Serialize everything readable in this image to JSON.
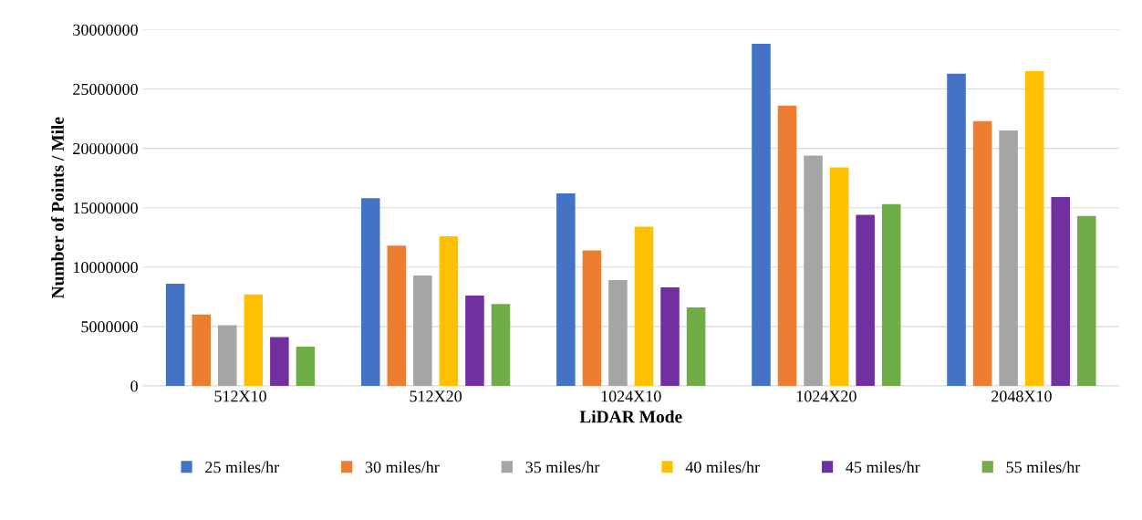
{
  "chart_data": {
    "type": "bar",
    "xlabel": "LiDAR Mode",
    "ylabel": "Number of Points / Mile",
    "categories": [
      "512X10",
      "512X20",
      "1024X10",
      "1024X20",
      "2048X10"
    ],
    "series": [
      {
        "name": "25 miles/hr",
        "color": "#4472c4",
        "values": [
          8600000,
          15800000,
          16200000,
          28800000,
          26300000
        ]
      },
      {
        "name": "30 miles/hr",
        "color": "#ed7d31",
        "values": [
          6000000,
          11800000,
          11400000,
          23600000,
          22300000
        ]
      },
      {
        "name": "35 miles/hr",
        "color": "#a5a5a5",
        "values": [
          5100000,
          9300000,
          8900000,
          19400000,
          21500000
        ]
      },
      {
        "name": "40 miles/hr",
        "color": "#ffc000",
        "values": [
          7700000,
          12600000,
          13400000,
          18400000,
          26500000
        ]
      },
      {
        "name": "45 miles/hr",
        "color": "#7030a0",
        "values": [
          4100000,
          7600000,
          8300000,
          14400000,
          15900000
        ]
      },
      {
        "name": "55 miles/hr",
        "color": "#70ad47",
        "values": [
          3300000,
          6900000,
          6600000,
          15300000,
          14300000
        ]
      }
    ],
    "ylim": [
      0,
      30000000
    ],
    "yticks": [
      0,
      5000000,
      10000000,
      15000000,
      20000000,
      25000000,
      30000000
    ],
    "grid": "y",
    "legend": "bottom"
  }
}
